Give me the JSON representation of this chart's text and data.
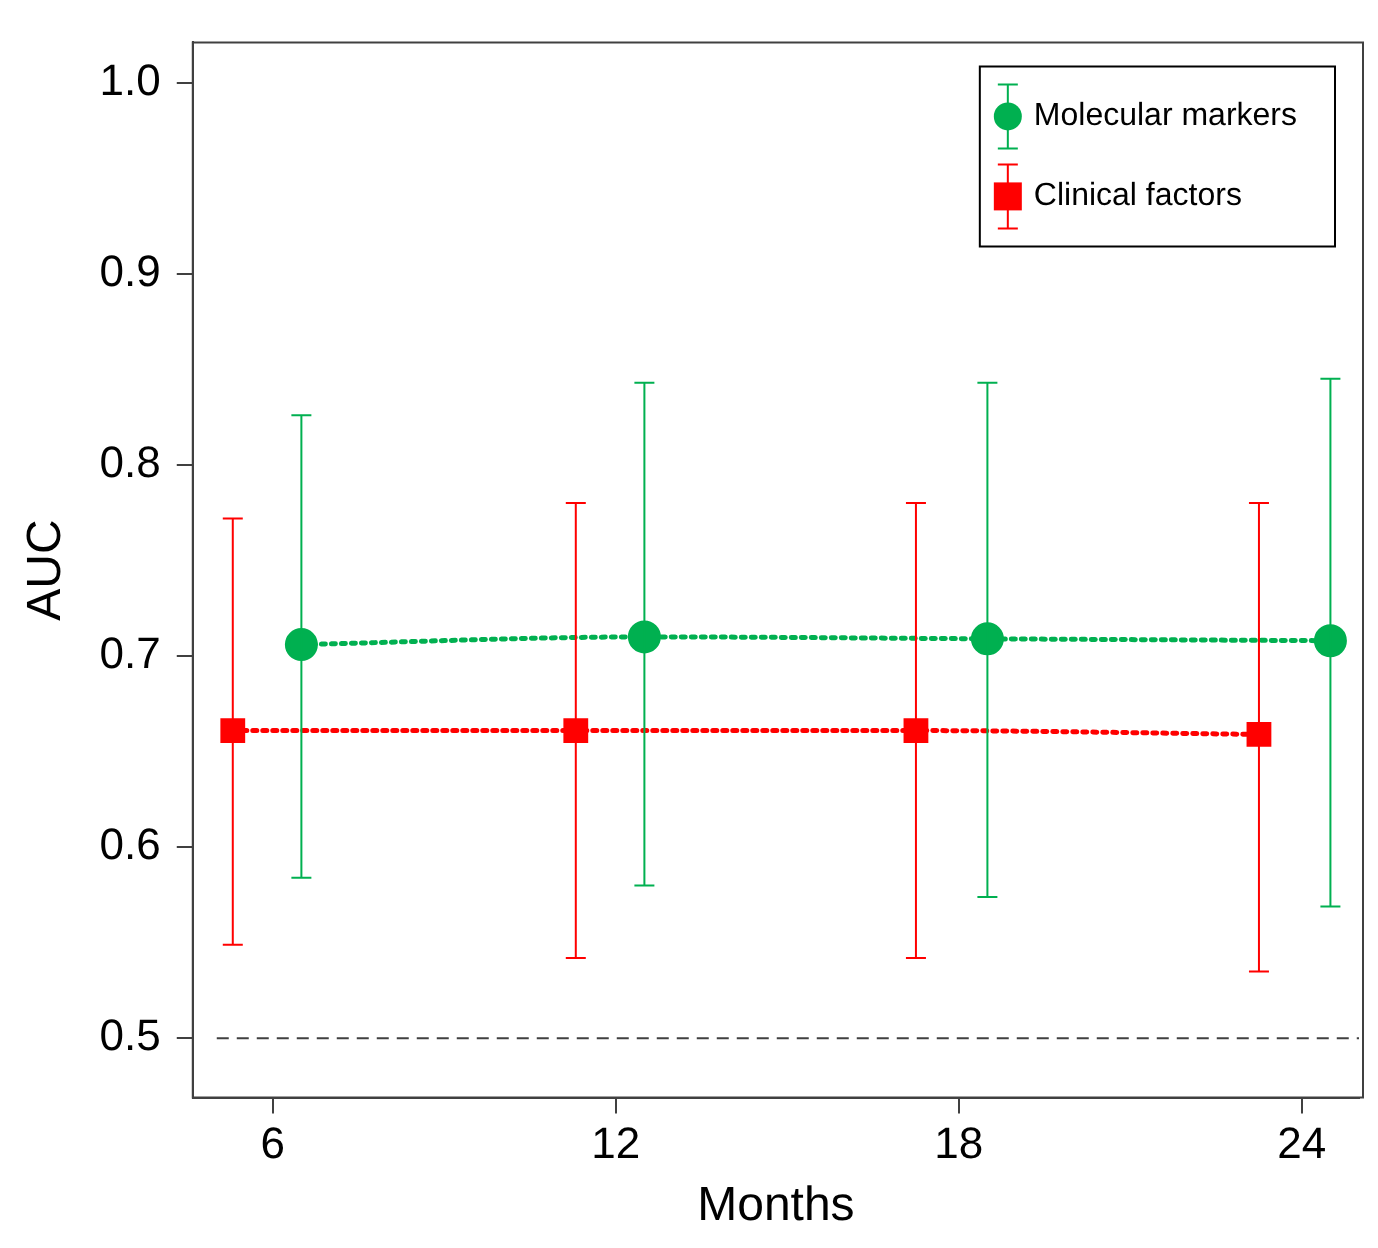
{
  "chart_data": {
    "type": "line",
    "xlabel": "Months",
    "ylabel": "AUC",
    "xlim": [
      4.6,
      25
    ],
    "xticks": [
      6,
      12,
      18,
      24
    ],
    "ylim": [
      0.469,
      1.021
    ],
    "yticks": [
      0.5,
      0.6,
      0.7,
      0.8,
      0.9,
      {
        "value": 1.0,
        "label": "1.0"
      }
    ],
    "grid": false,
    "legend": "top right",
    "line_style": "dotted",
    "series": [
      {
        "name": "Molecular markers",
        "color": "#00b050",
        "marker": "circle",
        "x": [
          6.5,
          12.5,
          18.5,
          24.5
        ],
        "values": [
          0.706,
          0.71,
          0.709,
          0.708
        ],
        "errors": [
          [
            0.584,
            0.826
          ],
          [
            0.58,
            0.843
          ],
          [
            0.574,
            0.843
          ],
          [
            0.569,
            0.845
          ]
        ]
      },
      {
        "name": "Clinical factors",
        "color": "#ff0000",
        "marker": "square",
        "x": [
          5.3,
          11.3,
          17.25,
          23.25
        ],
        "values": [
          0.661,
          0.661,
          0.661,
          0.659
        ],
        "errors": [
          [
            0.549,
            0.772
          ],
          [
            0.542,
            0.78
          ],
          [
            0.542,
            0.78
          ],
          [
            0.535,
            0.78
          ]
        ]
      }
    ],
    "ref_lines": [
      {
        "axis": "y",
        "value": 0.5,
        "color": "#404040",
        "line_style": "dashed"
      }
    ]
  }
}
